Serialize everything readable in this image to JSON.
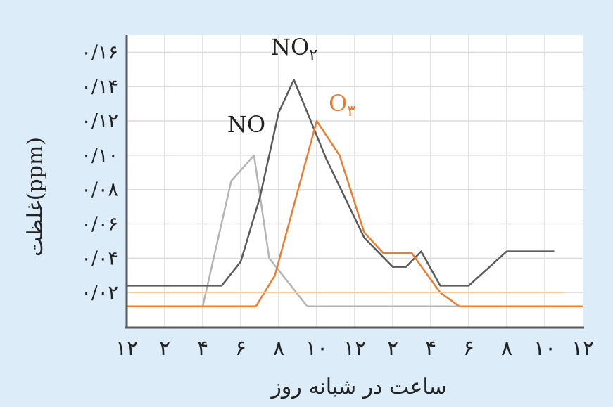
{
  "chart_data": {
    "type": "line",
    "title": "",
    "xlabel": "ساعت در شبانه روز",
    "ylabel": "غلظت(ppm)",
    "x_tick_labels": [
      "۱۲",
      "۲",
      "۴",
      "۶",
      "۸",
      "۱۰",
      "۱۲",
      "۲",
      "۴",
      "۶",
      "۸",
      "۱۰",
      "۱۲"
    ],
    "xlim": [
      0,
      24
    ],
    "y_tick_labels": [
      "۰/۰۲",
      "۰/۰۴",
      "۰/۰۶",
      "۰/۰۸",
      "۰/۱۰",
      "۰/۱۲",
      "۰/۱۴",
      "۰/۱۶"
    ],
    "y_tick_values": [
      0.02,
      0.04,
      0.06,
      0.08,
      0.1,
      0.12,
      0.14,
      0.16
    ],
    "ylim": [
      0,
      0.17
    ],
    "grid": true,
    "series": [
      {
        "name": "NO",
        "label_sub": "",
        "color": "#b4b4b4",
        "x": [
          0,
          4,
          5.5,
          6.7,
          7.5,
          9.5,
          24
        ],
        "y": [
          0.012,
          0.012,
          0.085,
          0.1,
          0.04,
          0.012,
          0.012
        ]
      },
      {
        "name": "NO",
        "label_sub": "۲",
        "color": "#5a5a5a",
        "x": [
          0,
          5,
          6,
          7,
          8,
          8.8,
          10.5,
          12.5,
          14,
          14.7,
          15.5,
          16.5,
          18,
          20,
          22.5
        ],
        "y": [
          0.024,
          0.024,
          0.038,
          0.075,
          0.125,
          0.144,
          0.098,
          0.052,
          0.035,
          0.035,
          0.044,
          0.024,
          0.024,
          0.044,
          0.044
        ]
      },
      {
        "name": "O",
        "label_sub": "۳",
        "color": "#ec7d2e",
        "x": [
          0,
          6.8,
          7.8,
          10,
          11.2,
          12.5,
          13.5,
          15,
          16.5,
          17.5,
          19,
          24
        ],
        "y": [
          0.012,
          0.012,
          0.03,
          0.12,
          0.1,
          0.055,
          0.043,
          0.043,
          0.02,
          0.012,
          0.012,
          0.012
        ]
      },
      {
        "name": "",
        "label_sub": "",
        "color": "#f7c9a3",
        "x": [
          0,
          21.5,
          22,
          23
        ],
        "y": [
          0.02,
          0.02,
          0.02,
          0.02
        ]
      }
    ]
  }
}
